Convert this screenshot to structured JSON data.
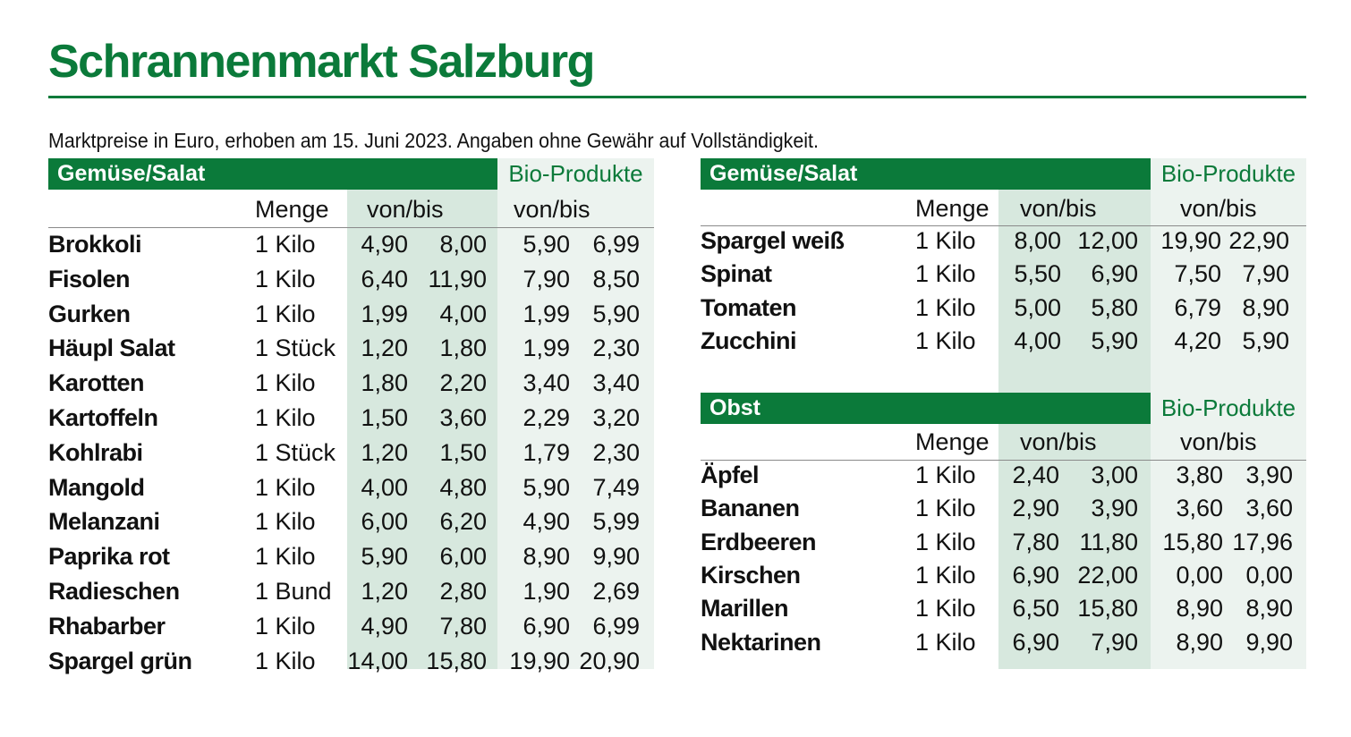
{
  "title": "Schrannenmarkt Salzburg",
  "subtitle": "Marktpreise in Euro, erhoben am 15. Juni 2023. Angaben ohne Gewähr auf Vollständigkeit.",
  "colors": {
    "accent": "#0b7a3a",
    "conv_shade": "#d7e8de",
    "bio_shade": "#ecf3ef"
  },
  "headers": {
    "menge": "Menge",
    "von_bis": "von/bis",
    "bio": "Bio-Produkte"
  },
  "tables": {
    "gemuese_left": {
      "title": "Gemüse/Salat",
      "rows": [
        {
          "name": "Brokkoli",
          "menge": "1 Kilo",
          "von": "4,90",
          "bis": "8,00",
          "bio_von": "5,90",
          "bio_bis": "6,99"
        },
        {
          "name": "Fisolen",
          "menge": "1 Kilo",
          "von": "6,40",
          "bis": "11,90",
          "bio_von": "7,90",
          "bio_bis": "8,50"
        },
        {
          "name": "Gurken",
          "menge": "1 Kilo",
          "von": "1,99",
          "bis": "4,00",
          "bio_von": "1,99",
          "bio_bis": "5,90"
        },
        {
          "name": "Häupl Salat",
          "menge": "1 Stück",
          "von": "1,20",
          "bis": "1,80",
          "bio_von": "1,99",
          "bio_bis": "2,30"
        },
        {
          "name": "Karotten",
          "menge": "1 Kilo",
          "von": "1,80",
          "bis": "2,20",
          "bio_von": "3,40",
          "bio_bis": "3,40"
        },
        {
          "name": "Kartoffeln",
          "menge": "1 Kilo",
          "von": "1,50",
          "bis": "3,60",
          "bio_von": "2,29",
          "bio_bis": "3,20"
        },
        {
          "name": "Kohlrabi",
          "menge": "1 Stück",
          "von": "1,20",
          "bis": "1,50",
          "bio_von": "1,79",
          "bio_bis": "2,30"
        },
        {
          "name": "Mangold",
          "menge": "1 Kilo",
          "von": "4,00",
          "bis": "4,80",
          "bio_von": "5,90",
          "bio_bis": "7,49"
        },
        {
          "name": "Melanzani",
          "menge": "1 Kilo",
          "von": "6,00",
          "bis": "6,20",
          "bio_von": "4,90",
          "bio_bis": "5,99"
        },
        {
          "name": "Paprika rot",
          "menge": "1 Kilo",
          "von": "5,90",
          "bis": "6,00",
          "bio_von": "8,90",
          "bio_bis": "9,90"
        },
        {
          "name": "Radieschen",
          "menge": "1 Bund",
          "von": "1,20",
          "bis": "2,80",
          "bio_von": "1,90",
          "bio_bis": "2,69"
        },
        {
          "name": "Rhabarber",
          "menge": "1 Kilo",
          "von": "4,90",
          "bis": "7,80",
          "bio_von": "6,90",
          "bio_bis": "6,99"
        },
        {
          "name": "Spargel grün",
          "menge": "1 Kilo",
          "von": "14,00",
          "bis": "15,80",
          "bio_von": "19,90",
          "bio_bis": "20,90"
        }
      ]
    },
    "gemuese_right": {
      "title": "Gemüse/Salat",
      "rows": [
        {
          "name": "Spargel weiß",
          "menge": "1 Kilo",
          "von": "8,00",
          "bis": "12,00",
          "bio_von": "19,90",
          "bio_bis": "22,90"
        },
        {
          "name": "Spinat",
          "menge": "1 Kilo",
          "von": "5,50",
          "bis": "6,90",
          "bio_von": "7,50",
          "bio_bis": "7,90"
        },
        {
          "name": "Tomaten",
          "menge": "1 Kilo",
          "von": "5,00",
          "bis": "5,80",
          "bio_von": "6,79",
          "bio_bis": "8,90"
        },
        {
          "name": "Zucchini",
          "menge": "1 Kilo",
          "von": "4,00",
          "bis": "5,90",
          "bio_von": "4,20",
          "bio_bis": "5,90"
        }
      ]
    },
    "obst": {
      "title": "Obst",
      "rows": [
        {
          "name": "Äpfel",
          "menge": "1 Kilo",
          "von": "2,40",
          "bis": "3,00",
          "bio_von": "3,80",
          "bio_bis": "3,90"
        },
        {
          "name": "Bananen",
          "menge": "1 Kilo",
          "von": "2,90",
          "bis": "3,90",
          "bio_von": "3,60",
          "bio_bis": "3,60"
        },
        {
          "name": "Erdbeeren",
          "menge": "1 Kilo",
          "von": "7,80",
          "bis": "11,80",
          "bio_von": "15,80",
          "bio_bis": "17,96"
        },
        {
          "name": "Kirschen",
          "menge": "1 Kilo",
          "von": "6,90",
          "bis": "22,00",
          "bio_von": "0,00",
          "bio_bis": "0,00"
        },
        {
          "name": "Marillen",
          "menge": "1 Kilo",
          "von": "6,50",
          "bis": "15,80",
          "bio_von": "8,90",
          "bio_bis": "8,90"
        },
        {
          "name": "Nektarinen",
          "menge": "1 Kilo",
          "von": "6,90",
          "bis": "7,90",
          "bio_von": "8,90",
          "bio_bis": "9,90"
        }
      ]
    }
  }
}
